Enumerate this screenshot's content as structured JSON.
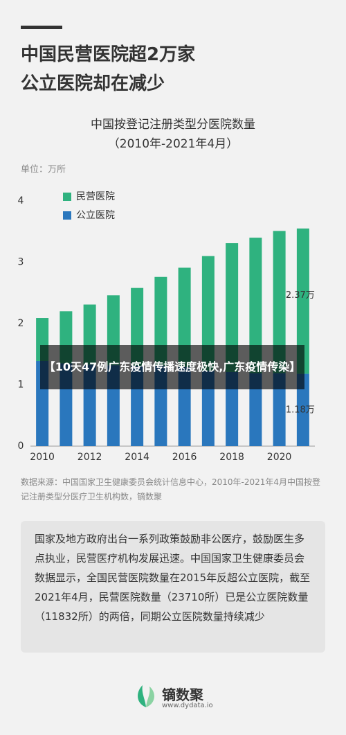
{
  "header": {
    "title_lines": [
      "中国民营医院超2万家",
      "公立医院却在减少"
    ]
  },
  "chart_data": {
    "type": "stacked-bar",
    "title": "中国按登记注册类型分医院数量",
    "subtitle": "（2010年-2021年4月）",
    "unit": "单位：万所",
    "categories": [
      2010,
      null,
      2012,
      null,
      2014,
      null,
      2016,
      null,
      2018,
      null,
      2020,
      null
    ],
    "series": [
      {
        "name": "民营医院",
        "color": "#2fb27f",
        "values": [
          0.7,
          0.85,
          0.98,
          1.14,
          1.27,
          1.45,
          1.62,
          1.87,
          2.1,
          2.21,
          2.32,
          2.37
        ],
        "value_labels": [
          null,
          null,
          null,
          null,
          null,
          null,
          null,
          null,
          null,
          null,
          null,
          "2.37万"
        ]
      },
      {
        "name": "公立医院",
        "color": "#2a77bd",
        "values": [
          1.39,
          1.35,
          1.33,
          1.32,
          1.31,
          1.31,
          1.29,
          1.23,
          1.21,
          1.19,
          1.19,
          1.18
        ],
        "value_labels": [
          null,
          null,
          null,
          null,
          null,
          null,
          null,
          null,
          null,
          null,
          null,
          "1.18万"
        ]
      }
    ],
    "ylim": [
      0,
      4
    ],
    "yticks": [
      0,
      1,
      2,
      3,
      4
    ]
  },
  "overlay": {
    "text": "【10天47例广东疫情传播速度极快,广东疫情传染】"
  },
  "source": "数据来源：中国国家卫生健康委员会统计信息中心，2010年-2021年4月中国按登记注册类型分医疗卫生机构数，镝数聚",
  "description": "国家及地方政府出台一系列政策鼓励非公医疗，鼓励医生多点执业，民营医疗机构发展迅速。中国国家卫生健康委员会数据显示，全国民营医院数量在2015年反超公立医院，截至2021年4月，民营医院数量（23710所）已是公立医院数量（11832所）的两倍，同期公立医院数量持续减少",
  "footer": {
    "brand": "镝数聚",
    "url": "www.dydata.io"
  }
}
